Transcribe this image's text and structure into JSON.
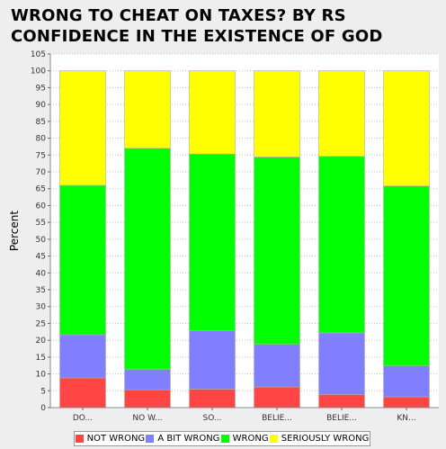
{
  "title": "WRONG TO CHEAT ON TAXES? BY RS CONFIDENCE IN THE EXISTENCE OF GOD",
  "chart_data": {
    "type": "bar",
    "stacked": true,
    "ylabel": "Percent",
    "xlabel": "",
    "ylim": [
      0,
      105
    ],
    "yticks": [
      0,
      5,
      10,
      15,
      20,
      25,
      30,
      35,
      40,
      45,
      50,
      55,
      60,
      65,
      70,
      75,
      80,
      85,
      90,
      95,
      100,
      105
    ],
    "grid": true,
    "legend_position": "bottom",
    "categories": [
      "DO...",
      "NO W...",
      "SO...",
      "BELIE...",
      "BELIE...",
      "KN..."
    ],
    "series": [
      {
        "name": "NOT WRONG",
        "color": "#ff4444",
        "values": [
          8.8,
          5.3,
          5.5,
          6.1,
          3.9,
          3.2
        ]
      },
      {
        "name": "A BIT WRONG",
        "color": "#8080ff",
        "values": [
          12.8,
          6.0,
          17.3,
          12.7,
          18.3,
          9.2
        ]
      },
      {
        "name": "WRONG",
        "color": "#00ff00",
        "values": [
          44.4,
          65.7,
          52.5,
          55.6,
          52.4,
          53.4
        ]
      },
      {
        "name": "SERIOUSLY WRONG",
        "color": "#ffff00",
        "values": [
          34.0,
          23.0,
          24.7,
          25.6,
          25.4,
          34.2
        ]
      }
    ]
  }
}
